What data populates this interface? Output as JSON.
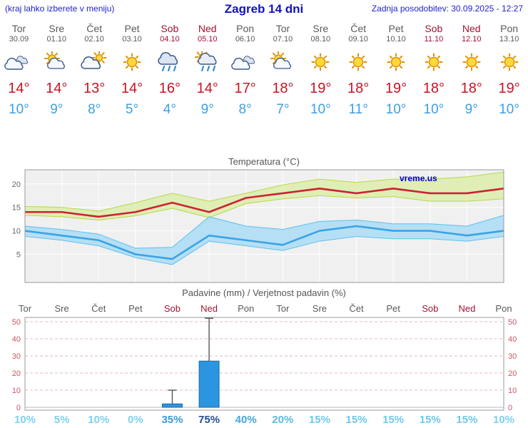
{
  "header": {
    "left_note": "(kraj lahko izberete v meniju)",
    "title": "Zagreb 14 dni",
    "updated": "Zadnja posodobitev: 30.09.2025 - 12:27"
  },
  "colors": {
    "accent_blue": "#1111cc",
    "high_temp": "#cc1122",
    "low_temp": "#3d9fe0",
    "weekend": "#a11235",
    "weekday": "#5a5a5a",
    "bar_fill": "#2b95e0",
    "bar_stroke": "#1a6aa8"
  },
  "days": [
    {
      "name": "Tor",
      "date": "30.09",
      "weekend": false,
      "icon": "cloudy",
      "high": "14°",
      "low": "10°"
    },
    {
      "name": "Sre",
      "date": "01.10",
      "weekend": false,
      "icon": "partly-cloudy",
      "high": "14°",
      "low": "9°"
    },
    {
      "name": "Čet",
      "date": "02.10",
      "weekend": false,
      "icon": "mostly-cloudy",
      "high": "13°",
      "low": "8°"
    },
    {
      "name": "Pet",
      "date": "03.10",
      "weekend": false,
      "icon": "sunny",
      "high": "14°",
      "low": "5°"
    },
    {
      "name": "Sob",
      "date": "04.10",
      "weekend": true,
      "icon": "rain",
      "high": "16°",
      "low": "4°"
    },
    {
      "name": "Ned",
      "date": "05.10",
      "weekend": true,
      "icon": "rain-showers",
      "high": "14°",
      "low": "9°"
    },
    {
      "name": "Pon",
      "date": "06.10",
      "weekend": false,
      "icon": "cloudy",
      "high": "17°",
      "low": "8°"
    },
    {
      "name": "Tor",
      "date": "07.10",
      "weekend": false,
      "icon": "partly-cloudy",
      "high": "18°",
      "low": "7°"
    },
    {
      "name": "Sre",
      "date": "08.10",
      "weekend": false,
      "icon": "sunny",
      "high": "19°",
      "low": "10°"
    },
    {
      "name": "Čet",
      "date": "09.10",
      "weekend": false,
      "icon": "sunny",
      "high": "18°",
      "low": "11°"
    },
    {
      "name": "Pet",
      "date": "10.10",
      "weekend": false,
      "icon": "sunny",
      "high": "19°",
      "low": "10°"
    },
    {
      "name": "Sob",
      "date": "11.10",
      "weekend": true,
      "icon": "sunny",
      "high": "18°",
      "low": "10°"
    },
    {
      "name": "Ned",
      "date": "12.10",
      "weekend": true,
      "icon": "sunny",
      "high": "18°",
      "low": "9°"
    },
    {
      "name": "Pon",
      "date": "13.10",
      "weekend": false,
      "icon": "sunny",
      "high": "19°",
      "low": "10°"
    }
  ],
  "chart_data": [
    {
      "type": "line",
      "title": "Temperatura (°C)",
      "watermark": "vreme.us",
      "categories": [
        "Tor",
        "Sre",
        "Čet",
        "Pet",
        "Sob",
        "Ned",
        "Pon",
        "Tor",
        "Sre",
        "Čet",
        "Pet",
        "Sob",
        "Ned",
        "Pon"
      ],
      "ylim": [
        -1,
        23
      ],
      "yticks": [
        5,
        10,
        15,
        20
      ],
      "grid": true,
      "series": [
        {
          "name": "max-temp",
          "color": "#cc2233",
          "values": [
            14,
            14,
            13,
            14,
            16,
            14,
            17,
            18,
            19,
            18,
            19,
            18,
            18,
            19
          ],
          "band_high": [
            15.2,
            15,
            14.2,
            16,
            18,
            16.3,
            18,
            19.8,
            21,
            20.3,
            21,
            21,
            21.5,
            22.5
          ],
          "band_low": [
            13.3,
            13,
            12.3,
            13.2,
            14.8,
            12.8,
            15.8,
            16.8,
            17.5,
            17,
            17.3,
            16.3,
            16.3,
            16.8
          ],
          "band_fill": "#dcedaa",
          "band_stroke": "#b8d848"
        },
        {
          "name": "min-temp",
          "color": "#39a3e6",
          "values": [
            10,
            9,
            8,
            5,
            4,
            9,
            8,
            7,
            10,
            11,
            10,
            10,
            9,
            10
          ],
          "band_high": [
            11,
            10.3,
            9.3,
            6.3,
            6.5,
            13,
            11,
            10.3,
            12,
            12.3,
            11.5,
            11.5,
            11,
            13.3
          ],
          "band_low": [
            8.8,
            8,
            6.8,
            4.3,
            2.8,
            7.8,
            6.8,
            5.8,
            7.8,
            8.8,
            8.3,
            8.3,
            7.8,
            8.8
          ],
          "band_fill": "#aadcf5",
          "band_stroke": "#5ec0ee"
        }
      ]
    },
    {
      "type": "bar",
      "title": "Padavine (mm) / Verjetnost padavin (%)",
      "categories": [
        "Tor",
        "Sre",
        "Čet",
        "Pet",
        "Sob",
        "Ned",
        "Pon",
        "Tor",
        "Sre",
        "Čet",
        "Pet",
        "Sob",
        "Ned",
        "Pon"
      ],
      "ylim": [
        0,
        54
      ],
      "yticks": [
        0,
        10,
        20,
        30,
        40,
        50
      ],
      "bars": [
        0,
        0,
        0,
        0,
        2,
        27,
        0,
        0,
        0,
        0,
        0,
        0,
        0,
        0
      ],
      "whisker_high": [
        0,
        0,
        0,
        0,
        10,
        52,
        0,
        0,
        0,
        0,
        0,
        0,
        0,
        0
      ],
      "probabilities": [
        "10%",
        "5%",
        "10%",
        "0%",
        "35%",
        "75%",
        "40%",
        "20%",
        "15%",
        "15%",
        "15%",
        "15%",
        "15%",
        "10%"
      ],
      "prob_colors": [
        "#7fd0f0",
        "#7fd0f0",
        "#7fd0f0",
        "#7fd0f0",
        "#3a9ad4",
        "#224f9c",
        "#44a8dc",
        "#5cb8e4",
        "#70c8ec",
        "#70c8ec",
        "#70c8ec",
        "#70c8ec",
        "#70c8ec",
        "#7fd0f0"
      ]
    }
  ]
}
